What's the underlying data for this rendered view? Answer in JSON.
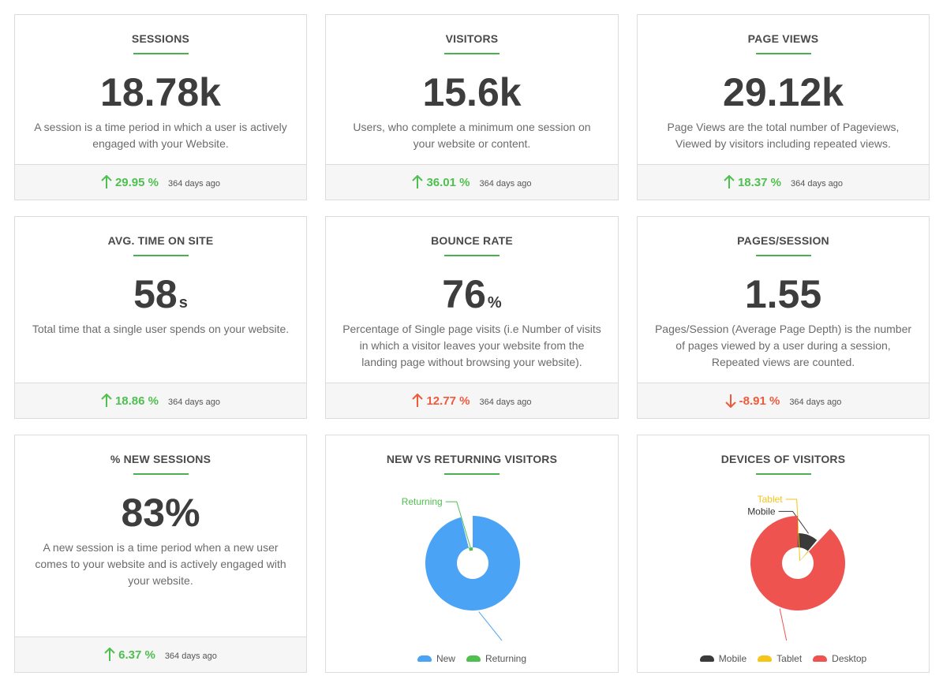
{
  "cards": {
    "sessions": {
      "title": "SESSIONS",
      "value": "18.78k",
      "unit": "",
      "desc_lines": [
        "A session is a time period in which a user is actively",
        "engaged with your Website."
      ],
      "trend": "29.95 %",
      "direction": "up",
      "ago": "364 days ago"
    },
    "visitors": {
      "title": "VISITORS",
      "value": "15.6k",
      "unit": "",
      "desc_lines": [
        "Users, who complete a minimum one session on",
        "your website or content."
      ],
      "trend": "36.01 %",
      "direction": "up",
      "ago": "364 days ago"
    },
    "page_views": {
      "title": "PAGE VIEWS",
      "value": "29.12k",
      "unit": "",
      "desc_lines": [
        "Page Views are the total number of Pageviews,",
        "Viewed by visitors including repeated views."
      ],
      "trend": "18.37 %",
      "direction": "up",
      "ago": "364 days ago"
    },
    "avg_time": {
      "title": "AVG. TIME ON SITE",
      "value": "58",
      "unit": "s",
      "desc_lines": [
        "Total time that a single user spends on your website."
      ],
      "trend": "18.86 %",
      "direction": "up",
      "ago": "364 days ago"
    },
    "bounce_rate": {
      "title": "BOUNCE RATE",
      "value": "76",
      "unit": "%",
      "desc_lines": [
        "Percentage of Single page visits (i.e Number of visits",
        "in which a visitor leaves your website from the",
        "landing page without browsing your website)."
      ],
      "trend": "12.77 %",
      "direction": "up-bad",
      "ago": "364 days ago"
    },
    "pages_session": {
      "title": "PAGES/SESSION",
      "value": "1.55",
      "unit": "",
      "desc_lines": [
        "Pages/Session (Average Page Depth) is the number",
        "of pages viewed by a user during a session,",
        "Repeated views are counted."
      ],
      "trend": "-8.91 %",
      "direction": "down",
      "ago": "364 days ago"
    },
    "new_sessions": {
      "title": "% NEW SESSIONS",
      "value": "83%",
      "unit": "",
      "desc_lines": [
        "A new session is a time period when a new user",
        "comes to your website and is actively engaged with",
        "your website."
      ],
      "trend": "6.37 %",
      "direction": "up",
      "ago": "364 days ago"
    }
  },
  "colors": {
    "accent": "#4caf50",
    "up": "#4fbf50",
    "down": "#ef5a3b",
    "new": "#4aa3f5",
    "returning": "#4fbf50",
    "mobile": "#3a3a3a",
    "tablet": "#f5c518",
    "desktop": "#ef5350"
  },
  "chart_data": [
    {
      "type": "pie",
      "title": "NEW VS RETURNING VISITORS",
      "categories": [
        "New",
        "Returning"
      ],
      "values": [
        96,
        4
      ],
      "colors": [
        "#4aa3f5",
        "#4fbf50"
      ],
      "legend": "bottom"
    },
    {
      "type": "pie",
      "title": "DEVICES OF VISITORS",
      "categories": [
        "Mobile",
        "Tablet",
        "Desktop"
      ],
      "values": [
        11,
        1,
        88
      ],
      "colors": [
        "#3a3a3a",
        "#f5c518",
        "#ef5350"
      ],
      "legend": "bottom"
    }
  ]
}
